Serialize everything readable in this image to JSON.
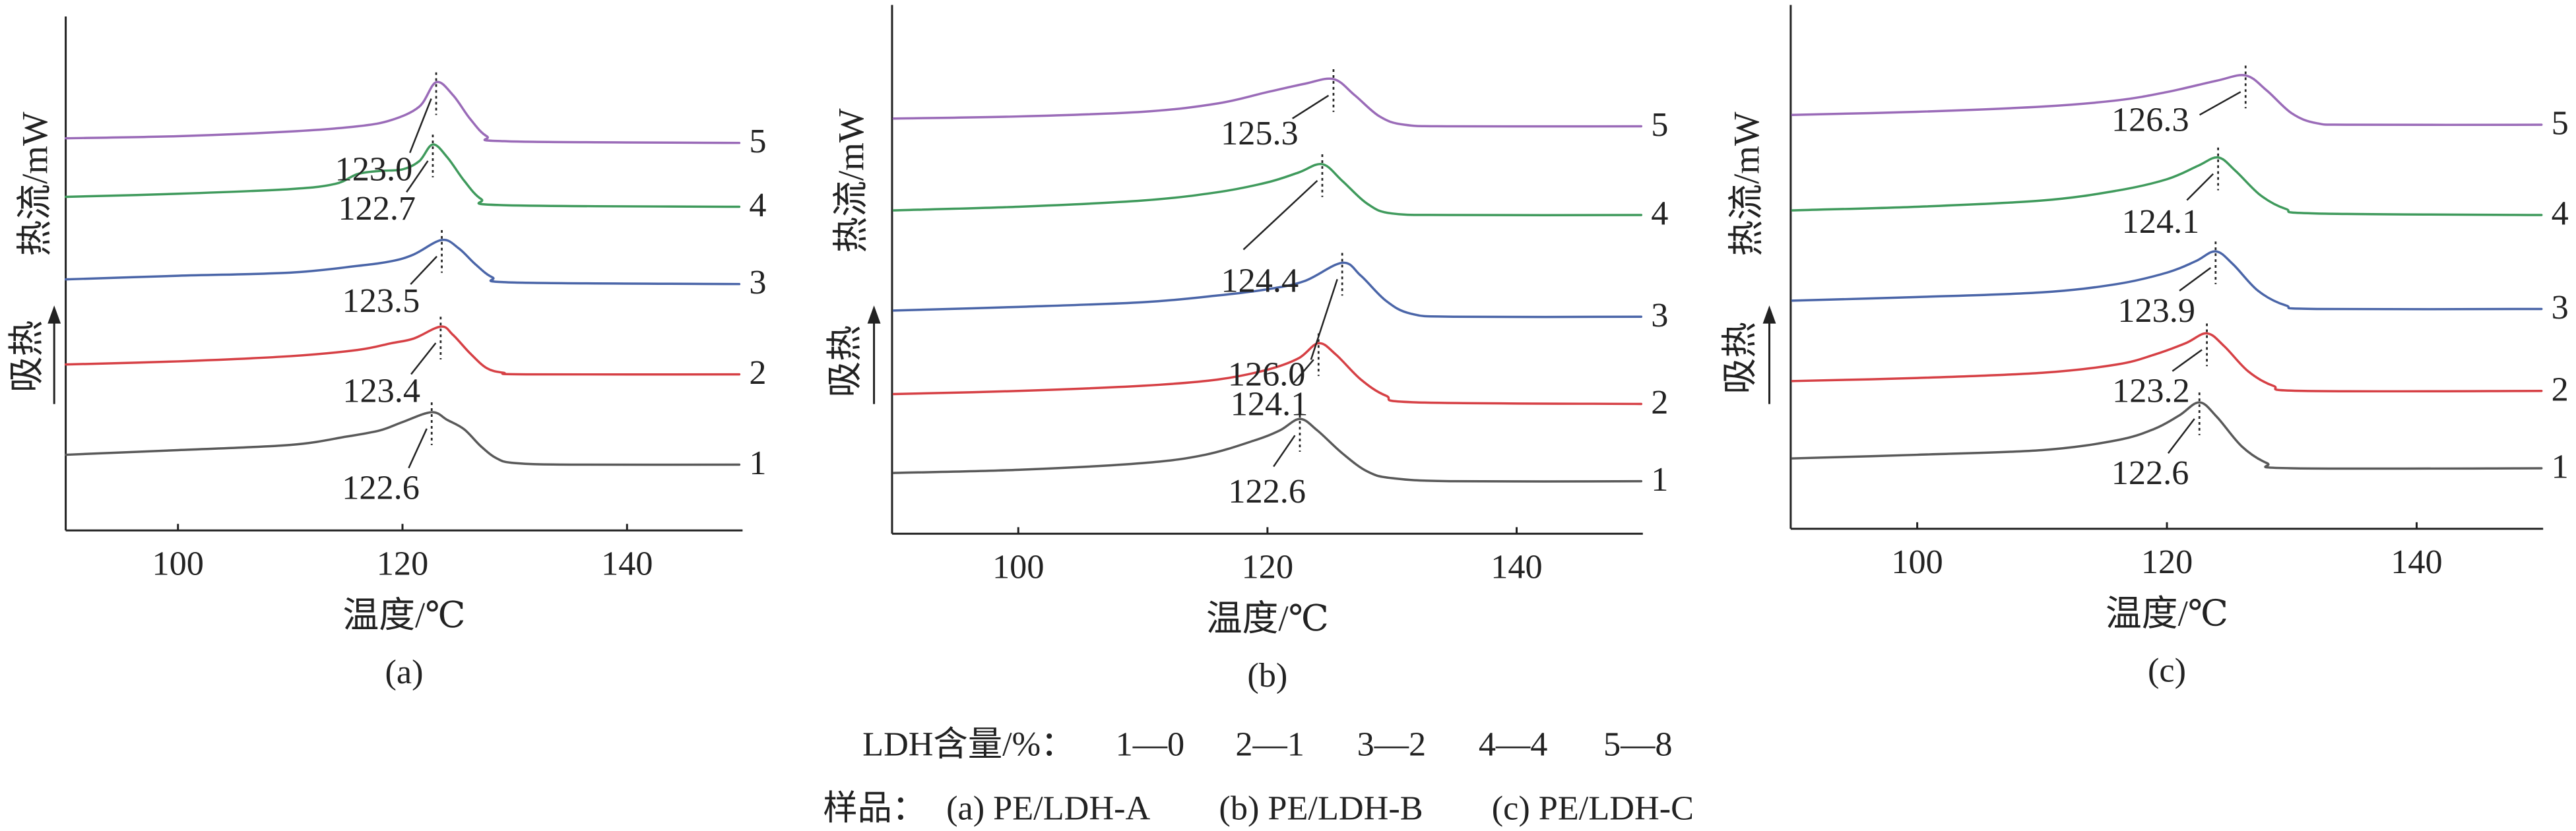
{
  "chart_data": [
    {
      "type": "line",
      "panel_label": "(a)",
      "xlabel": "温度/℃",
      "ylabel": "热流/mW",
      "ylabel_arrow": "吸热",
      "xlim": [
        90,
        150
      ],
      "xticks": [
        100,
        120,
        140
      ],
      "ylim": [
        0,
        10
      ],
      "grid": false,
      "series": [
        {
          "name": "1",
          "color": "#595959",
          "peak_label": "122.6",
          "x": [
            90,
            100,
            110,
            115,
            118,
            120,
            122.6,
            124,
            125.5,
            127,
            128.4,
            130,
            135,
            150
          ],
          "y": [
            1.49,
            1.58,
            1.68,
            1.84,
            1.96,
            2.12,
            2.31,
            2.16,
            1.98,
            1.65,
            1.42,
            1.33,
            1.3,
            1.3
          ]
        },
        {
          "name": "2",
          "color": "#d64045",
          "peak_label": "123.4",
          "x": [
            90,
            100,
            110,
            116,
            119,
            121,
            123.4,
            124.5,
            126,
            127.5,
            129,
            131,
            150
          ],
          "y": [
            3.23,
            3.29,
            3.39,
            3.51,
            3.64,
            3.73,
            3.96,
            3.8,
            3.45,
            3.16,
            3.07,
            3.04,
            3.04
          ]
        },
        {
          "name": "3",
          "color": "#4a65a8",
          "peak_label": "123.5",
          "x": [
            90,
            100,
            110,
            116,
            119,
            121,
            123.5,
            125,
            126.5,
            128,
            130,
            150
          ],
          "y": [
            4.87,
            4.94,
            5.0,
            5.13,
            5.22,
            5.35,
            5.63,
            5.47,
            5.16,
            4.91,
            4.81,
            4.78
          ]
        },
        {
          "name": "4",
          "color": "#3f9a5c",
          "peak_label": "122.7",
          "x": [
            90,
            100,
            110,
            114,
            116,
            118,
            120,
            121.5,
            122.7,
            124,
            125.5,
            127,
            129,
            150
          ],
          "y": [
            6.46,
            6.52,
            6.61,
            6.71,
            6.9,
            6.96,
            6.99,
            7.15,
            7.47,
            7.22,
            6.77,
            6.42,
            6.3,
            6.27
          ]
        },
        {
          "name": "5",
          "color": "#9a6bb8",
          "peak_label": "123.0",
          "x": [
            90,
            100,
            110,
            116,
            119,
            121.5,
            123,
            124.5,
            126,
            127.5,
            129.5,
            150
          ],
          "y": [
            7.59,
            7.63,
            7.72,
            7.82,
            7.94,
            8.2,
            8.67,
            8.42,
            7.97,
            7.63,
            7.53,
            7.5
          ]
        }
      ]
    },
    {
      "type": "line",
      "panel_label": "(b)",
      "xlabel": "温度/℃",
      "ylabel": "热流/mW",
      "ylabel_arrow": "吸热",
      "xlim": [
        90,
        150
      ],
      "xticks": [
        100,
        120,
        140
      ],
      "ylim": [
        0,
        10
      ],
      "grid": false,
      "series": [
        {
          "name": "1",
          "color": "#595959",
          "peak_label": "122.6",
          "x": [
            90,
            100,
            110,
            115,
            119,
            121,
            122.6,
            124,
            126,
            128,
            130,
            135,
            150
          ],
          "y": [
            1.14,
            1.2,
            1.33,
            1.49,
            1.77,
            1.96,
            2.18,
            1.96,
            1.52,
            1.17,
            1.04,
            0.98,
            0.98
          ]
        },
        {
          "name": "2",
          "color": "#d64045",
          "peak_label": "124.1",
          "x": [
            90,
            100,
            110,
            116,
            120,
            122.5,
            124.1,
            125.5,
            127.5,
            129.5,
            132,
            150
          ],
          "y": [
            2.66,
            2.72,
            2.82,
            2.94,
            3.13,
            3.35,
            3.64,
            3.42,
            2.94,
            2.63,
            2.5,
            2.47
          ]
        },
        {
          "name": "3",
          "color": "#4a65a8",
          "peak_label": "126.0",
          "x": [
            90,
            100,
            110,
            116,
            120,
            123,
            126.0,
            127.5,
            129.5,
            131.5,
            135,
            150
          ],
          "y": [
            4.27,
            4.34,
            4.43,
            4.56,
            4.68,
            4.84,
            5.19,
            4.94,
            4.46,
            4.21,
            4.15,
            4.15
          ]
        },
        {
          "name": "4",
          "color": "#3f9a5c",
          "peak_label": "124.4",
          "x": [
            90,
            100,
            110,
            116,
            120,
            122.5,
            124.4,
            126,
            128,
            130,
            135,
            150
          ],
          "y": [
            6.2,
            6.27,
            6.39,
            6.55,
            6.74,
            6.93,
            7.09,
            6.77,
            6.33,
            6.14,
            6.11,
            6.11
          ]
        },
        {
          "name": "5",
          "color": "#9a6bb8",
          "peak_label": "125.3",
          "x": [
            90,
            100,
            110,
            116,
            120,
            123,
            125.3,
            127,
            129,
            131,
            135,
            150
          ],
          "y": [
            7.97,
            8.01,
            8.1,
            8.26,
            8.48,
            8.64,
            8.73,
            8.42,
            8.01,
            7.85,
            7.82,
            7.82
          ]
        }
      ]
    },
    {
      "type": "line",
      "panel_label": "(c)",
      "xlabel": "温度/℃",
      "ylabel": "热流/mW",
      "ylabel_arrow": "吸热",
      "xlim": [
        90,
        150
      ],
      "xticks": [
        100,
        120,
        140
      ],
      "ylim": [
        0,
        10
      ],
      "grid": false,
      "series": [
        {
          "name": "1",
          "color": "#595959",
          "peak_label": "122.6",
          "x": [
            90,
            100,
            110,
            116,
            119,
            121,
            122.6,
            124,
            126,
            128,
            130,
            150
          ],
          "y": [
            1.42,
            1.49,
            1.58,
            1.77,
            1.99,
            2.25,
            2.5,
            2.22,
            1.65,
            1.33,
            1.23,
            1.23
          ]
        },
        {
          "name": "2",
          "color": "#d64045",
          "peak_label": "123.2",
          "x": [
            90,
            100,
            110,
            116,
            119,
            121.5,
            123.2,
            124.6,
            126.5,
            128.5,
            131,
            150
          ],
          "y": [
            2.91,
            2.97,
            3.07,
            3.23,
            3.42,
            3.64,
            3.83,
            3.58,
            3.1,
            2.82,
            2.72,
            2.72
          ]
        },
        {
          "name": "3",
          "color": "#4a65a8",
          "peak_label": "123.9",
          "x": [
            90,
            100,
            110,
            116,
            120,
            122.3,
            123.9,
            125.3,
            127.3,
            129.5,
            132,
            150
          ],
          "y": [
            4.46,
            4.53,
            4.62,
            4.78,
            5.0,
            5.22,
            5.41,
            5.16,
            4.65,
            4.37,
            4.3,
            4.3
          ]
        },
        {
          "name": "4",
          "color": "#3f9a5c",
          "peak_label": "124.1",
          "x": [
            90,
            100,
            110,
            116,
            120,
            122.5,
            124.1,
            125.5,
            127.5,
            129.5,
            132,
            150
          ],
          "y": [
            6.2,
            6.27,
            6.39,
            6.58,
            6.8,
            7.06,
            7.22,
            6.96,
            6.49,
            6.23,
            6.14,
            6.11
          ]
        },
        {
          "name": "5",
          "color": "#9a6bb8",
          "peak_label": "126.3",
          "x": [
            90,
            100,
            110,
            116,
            120,
            124,
            126.3,
            128,
            130,
            132,
            135,
            150
          ],
          "y": [
            8.04,
            8.1,
            8.2,
            8.32,
            8.48,
            8.7,
            8.8,
            8.51,
            8.07,
            7.88,
            7.85,
            7.85
          ]
        }
      ]
    }
  ],
  "legend": {
    "content_label": "LDH含量/%：",
    "content_items": [
      "1—0",
      "2—1",
      "3—2",
      "4—4",
      "5—8"
    ],
    "sample_label": "样品：",
    "sample_items": [
      "(a) PE/LDH-A",
      "(b) PE/LDH-B",
      "(c) PE/LDH-C"
    ]
  }
}
